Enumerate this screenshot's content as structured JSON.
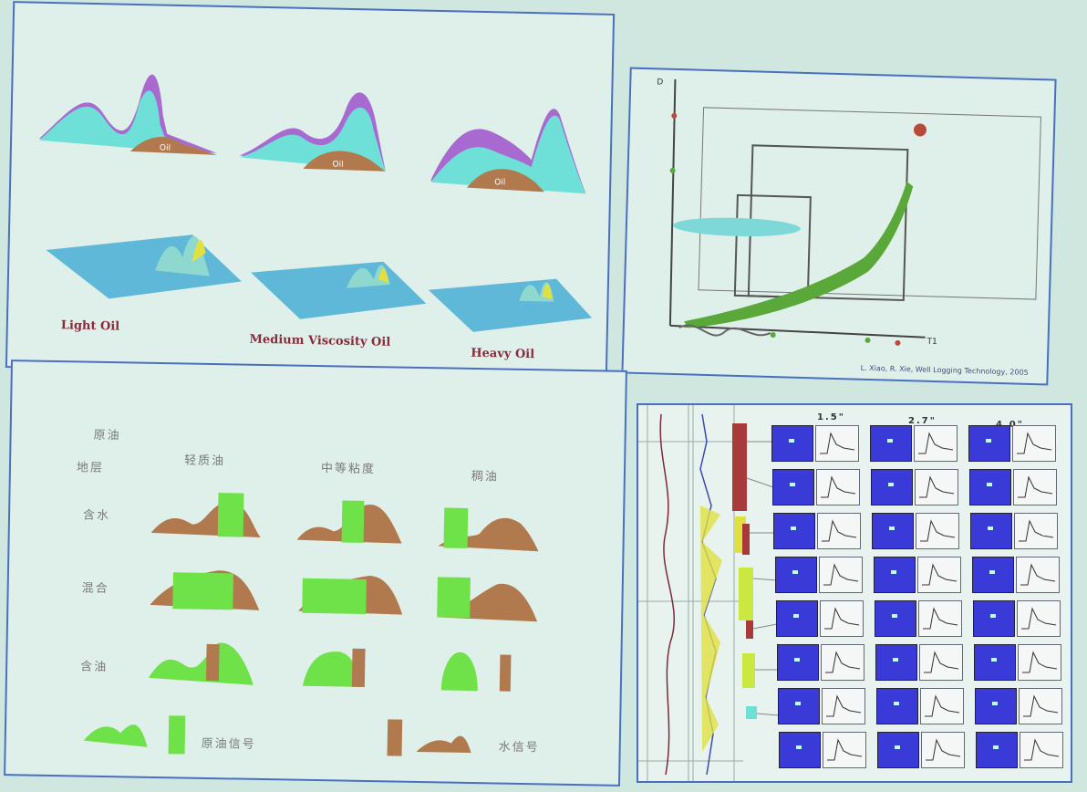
{
  "top_left": {
    "labels": [
      "Light Oil",
      "Medium Viscosity Oil",
      "Heavy Oil"
    ],
    "oil_tag": "Oil"
  },
  "top_right": {
    "citation": "L. Xiao, R. Xie, Well Logging Technology, 2005",
    "axis_x": "T1",
    "axis_y": "D"
  },
  "bottom_left": {
    "corner_top": "原油",
    "corner_bottom": "地层",
    "columns": [
      "轻质油",
      "中等粘度",
      "稠油"
    ],
    "rows": [
      "含水",
      "混合",
      "含油"
    ],
    "legend_oil": "原油信号",
    "legend_water": "水信号"
  },
  "bottom_right": {
    "columns": [
      "1.5\"",
      "2.7\"",
      "4.0\""
    ],
    "depth_marks": [
      "",
      "",
      ""
    ]
  },
  "colors": {
    "water": "#6fe0d8",
    "oil": "#b07a4e",
    "purple": "#a86ad0",
    "green": "#6fe24a",
    "blue_tile": "#3a3ad8",
    "red_bar": "#a83a3a"
  }
}
